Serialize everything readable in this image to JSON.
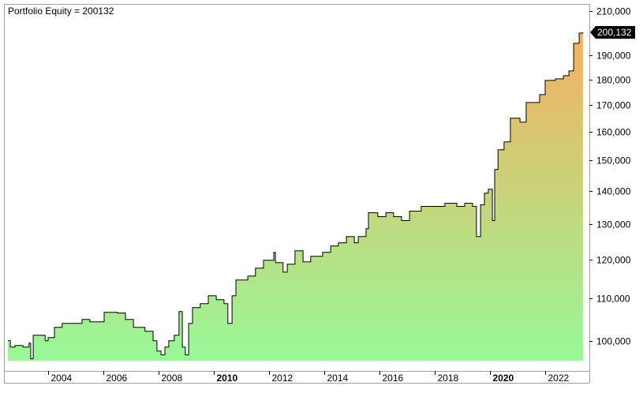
{
  "chart_data": {
    "type": "area",
    "title": "Portfolio Equity = 200132",
    "y_scale": "log",
    "ylim": [
      95600,
      213400
    ],
    "xlim": [
      2002.4,
      2023.6
    ],
    "grid": false,
    "y_ticks": [
      100000,
      110000,
      120000,
      130000,
      140000,
      150000,
      160000,
      170000,
      180000,
      190000,
      210000
    ],
    "y_tick_labels": [
      "100,000",
      "110,000",
      "120,000",
      "130,000",
      "140,000",
      "150,000",
      "160,000",
      "170,000",
      "180,000",
      "190,000",
      "210,000"
    ],
    "x_ticks": [
      2004,
      2006,
      2008,
      2010,
      2012,
      2014,
      2016,
      2018,
      2020,
      2022
    ],
    "x_tick_labels": [
      "2004",
      "2006",
      "2008",
      "2010",
      "2012",
      "2014",
      "2016",
      "2018",
      "2020",
      "2022"
    ],
    "x_bold_ticks": [
      "2010",
      "2020"
    ],
    "last_value_label": "200,132",
    "colors": {
      "line": "#000000",
      "fill_top": "#f5b060",
      "fill_bottom": "#98f898",
      "frame": "#a0a0a0"
    },
    "series": [
      {
        "x": [
          2002.54,
          2002.63,
          2002.8,
          2003.09,
          2003.31,
          2003.37,
          2003.46,
          2003.8,
          2003.89,
          2004.0,
          2004.23,
          2004.51,
          2004.94,
          2005.23,
          2005.51,
          2006.03,
          2006.51,
          2006.8,
          2007.09,
          2007.51,
          2007.8,
          2007.94,
          2008.09,
          2008.23,
          2008.37,
          2008.57,
          2008.74,
          2008.86,
          2008.97,
          2009.09,
          2009.23,
          2009.51,
          2009.8,
          2010.09,
          2010.37,
          2010.51,
          2010.66,
          2010.8,
          2011.23,
          2011.51,
          2011.8,
          2012.17,
          2012.23,
          2012.51,
          2012.66,
          2012.94,
          2013.23,
          2013.51,
          2013.94,
          2014.23,
          2014.51,
          2014.8,
          2015.09,
          2015.23,
          2015.51,
          2015.6,
          2015.94,
          2016.23,
          2016.51,
          2016.8,
          2017.09,
          2017.51,
          2017.94,
          2018.37,
          2018.8,
          2019.09,
          2019.37,
          2019.51,
          2019.66,
          2019.8,
          2019.94,
          2020.09,
          2020.17,
          2020.29,
          2020.51,
          2020.74,
          2021.09,
          2021.31,
          2021.8,
          2022.0,
          2022.37,
          2022.66,
          2022.86,
          2023.03,
          2023.23,
          2023.37
        ],
        "values": [
          100000,
          98590,
          98940,
          98590,
          99470,
          96000,
          101250,
          101250,
          100000,
          100710,
          103060,
          103980,
          103980,
          104910,
          104350,
          106600,
          106420,
          104910,
          103060,
          102150,
          100000,
          97720,
          96860,
          98590,
          100000,
          101250,
          106790,
          98590,
          96860,
          103980,
          107740,
          108700,
          110640,
          109670,
          108700,
          103980,
          110640,
          114650,
          115670,
          117750,
          119860,
          121980,
          119220,
          116700,
          118790,
          122420,
          119420,
          120900,
          121980,
          123770,
          124650,
          126430,
          124650,
          126430,
          128680,
          133380,
          132200,
          133380,
          132200,
          131030,
          133860,
          135290,
          135290,
          136260,
          135290,
          136260,
          135290,
          126430,
          135770,
          139410,
          140650,
          131030,
          147040,
          153710,
          156460,
          165030,
          163570,
          170940,
          174000,
          179650,
          180290,
          181570,
          183510,
          195290,
          199850,
          200132
        ]
      }
    ]
  }
}
